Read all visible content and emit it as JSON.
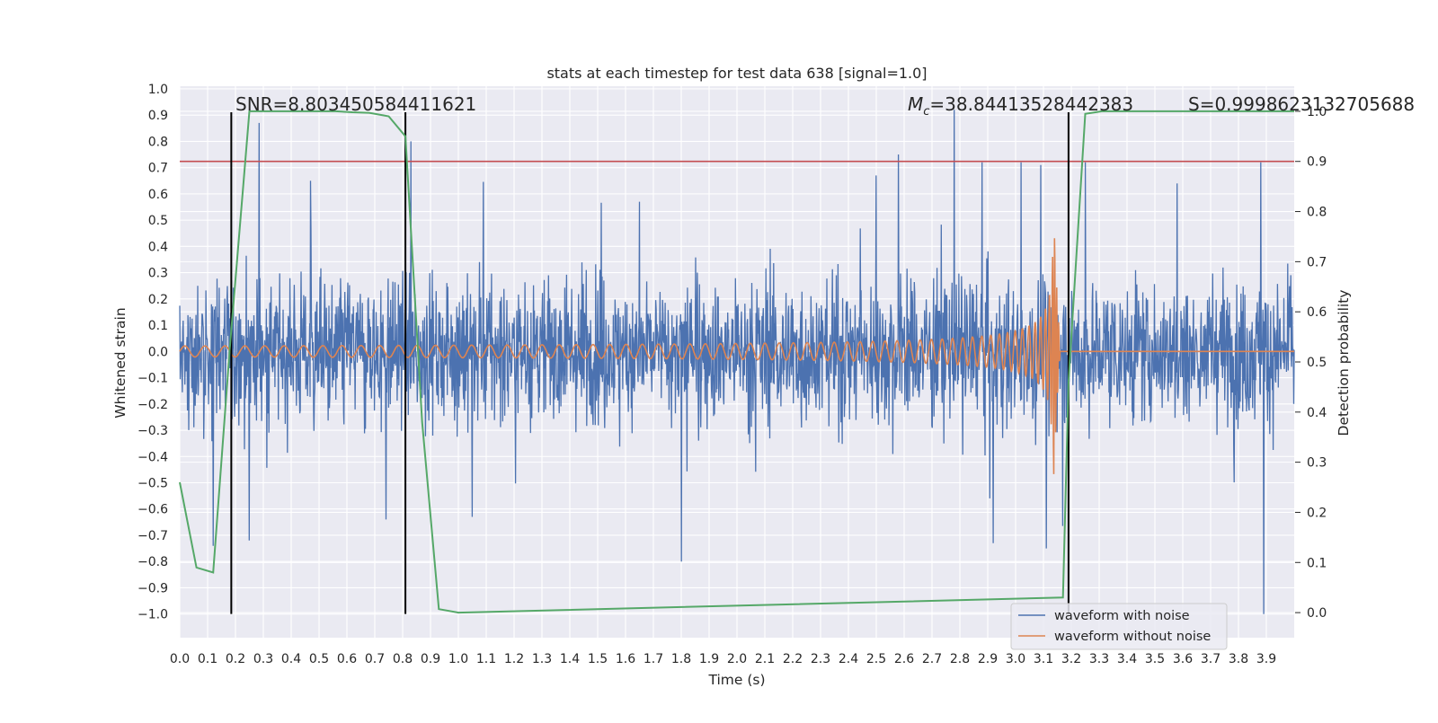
{
  "chart_data": {
    "type": "line",
    "title": "stats at each timestep for test data 638 [signal=1.0]",
    "xlabel": "Time (s)",
    "ylabel": "Whitened strain",
    "y2label": "Detection probability",
    "xlim": [
      0.0,
      4.0
    ],
    "ylim": [
      -1.09,
      1.01
    ],
    "y2lim": [
      -0.05,
      1.05
    ],
    "xticks": [
      0.0,
      0.1,
      0.2,
      0.3,
      0.4,
      0.5,
      0.6,
      0.7,
      0.8,
      0.9,
      1.0,
      1.1,
      1.2,
      1.3,
      1.4,
      1.5,
      1.6,
      1.7,
      1.8,
      1.9,
      2.0,
      2.1,
      2.2,
      2.3,
      2.4,
      2.5,
      2.6,
      2.7,
      2.8,
      2.9,
      3.0,
      3.1,
      3.2,
      3.3,
      3.4,
      3.5,
      3.6,
      3.7,
      3.8,
      3.9
    ],
    "yticks": [
      1.0,
      0.9,
      0.8,
      0.7,
      0.6,
      0.5,
      0.4,
      0.3,
      0.2,
      0.1,
      0.0,
      -0.1,
      -0.2,
      -0.3,
      -0.4,
      -0.5,
      -0.6,
      -0.7,
      -0.8,
      -0.9,
      -1.0
    ],
    "y2ticks": [
      1.0,
      0.9,
      0.8,
      0.7,
      0.6,
      0.5,
      0.4,
      0.3,
      0.2,
      0.1,
      0.0
    ],
    "grid": true,
    "legend_position": "bottom-right",
    "series": [
      {
        "name": "waveform with noise",
        "color": "#4c72b0",
        "kind": "noise",
        "envelope": 0.27,
        "peaks": [
          {
            "x": 0.285,
            "y": 0.87
          },
          {
            "x": 0.25,
            "y": -0.72
          },
          {
            "x": 0.12,
            "y": -0.74
          },
          {
            "x": 0.83,
            "y": 0.8
          },
          {
            "x": 0.47,
            "y": 0.65
          },
          {
            "x": 1.65,
            "y": 0.57
          },
          {
            "x": 1.8,
            "y": -0.8
          },
          {
            "x": 2.5,
            "y": 0.67
          },
          {
            "x": 2.58,
            "y": 0.75
          },
          {
            "x": 2.78,
            "y": 0.92
          },
          {
            "x": 2.88,
            "y": 0.72
          },
          {
            "x": 3.02,
            "y": 0.72
          },
          {
            "x": 3.09,
            "y": 0.71
          },
          {
            "x": 3.11,
            "y": -0.75
          },
          {
            "x": 3.25,
            "y": 0.72
          },
          {
            "x": 3.58,
            "y": 0.64
          },
          {
            "x": 3.88,
            "y": 0.72
          },
          {
            "x": 3.89,
            "y": -1.0
          },
          {
            "x": 1.05,
            "y": -0.63
          },
          {
            "x": 2.92,
            "y": -0.73
          },
          {
            "x": 0.74,
            "y": -0.64
          }
        ]
      },
      {
        "name": "waveform without noise",
        "color": "#dd8452",
        "kind": "chirp",
        "merger_time": 3.14,
        "peak_amplitude": 0.5
      },
      {
        "name": "detection probability",
        "color": "#55a868",
        "axis": "right",
        "x": [
          0.0,
          0.06,
          0.12,
          0.18,
          0.25,
          0.31,
          0.37,
          0.43,
          0.5,
          0.56,
          0.62,
          0.68,
          0.75,
          0.81,
          0.87,
          0.93,
          1.0,
          3.17,
          3.19,
          3.25,
          3.31,
          3.37,
          3.43,
          3.5,
          3.56,
          3.62,
          3.68,
          3.75,
          3.81,
          3.87,
          3.93,
          4.0
        ],
        "y": [
          0.26,
          0.09,
          0.08,
          0.53,
          1.0,
          1.0,
          1.0,
          1.0,
          1.0,
          1.0,
          0.998,
          0.997,
          0.99,
          0.95,
          0.38,
          0.007,
          0.0,
          0.03,
          0.46,
          0.995,
          1.0,
          1.0,
          1.0,
          1.0,
          1.0,
          1.0,
          1.0,
          1.0,
          1.0,
          1.0,
          1.0,
          1.0
        ]
      }
    ],
    "threshold": {
      "axis": "right",
      "value": 0.9,
      "color": "#c44e52"
    },
    "vlines": [
      0.185,
      0.81,
      3.19
    ],
    "annotations": {
      "snr": "SNR=8.803450584411621",
      "mc": "=38.84413528442383",
      "mc_symbol": "M",
      "mc_sub": "c",
      "s": "S=0.9998623132705688"
    }
  }
}
